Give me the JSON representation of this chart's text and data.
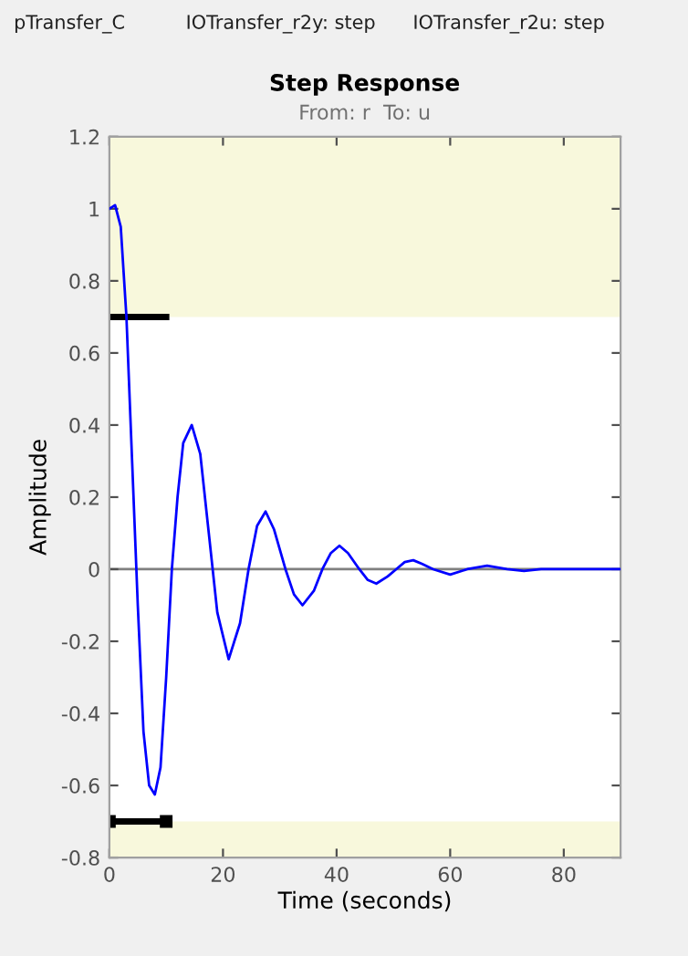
{
  "chart_data": {
    "type": "line",
    "title": "Step Response",
    "subtitle": "From: r  To: u",
    "xlabel": "Time (seconds)",
    "ylabel": "Amplitude",
    "annotations": [
      "pTransfer_C",
      "IOTransfer_r2y: step",
      "IOTransfer_r2u: step"
    ],
    "series": [
      {
        "color": "#0000ff",
        "x": [
          0,
          1,
          2,
          3,
          4,
          5,
          6,
          7,
          8,
          9,
          10,
          11,
          12,
          13,
          14.5,
          16,
          17.5,
          19,
          21,
          23,
          24.5,
          26,
          27.5,
          29,
          31,
          32.5,
          34,
          36,
          37.5,
          39,
          40.5,
          42,
          44,
          45.5,
          47,
          49,
          50.5,
          52,
          53.5,
          55,
          57,
          60,
          63,
          66.5,
          70,
          73,
          76,
          90
        ],
        "values": [
          1.0,
          1.01,
          0.95,
          0.7,
          0.3,
          -0.1,
          -0.45,
          -0.6,
          -0.625,
          -0.55,
          -0.3,
          0.0,
          0.2,
          0.35,
          0.4,
          0.32,
          0.1,
          -0.12,
          -0.25,
          -0.15,
          0.0,
          0.12,
          0.16,
          0.11,
          0.0,
          -0.07,
          -0.1,
          -0.06,
          0.0,
          0.045,
          0.065,
          0.045,
          0.0,
          -0.03,
          -0.04,
          -0.02,
          0.0,
          0.02,
          0.025,
          0.015,
          0.0,
          -0.015,
          0.0,
          0.01,
          0.0,
          -0.005,
          0.0,
          0.0
        ]
      },
      {
        "color": "#000000",
        "x": [
          0,
          10
        ],
        "values": [
          0.7,
          0.7
        ]
      },
      {
        "color": "#000000",
        "x": [
          0,
          10
        ],
        "values": [
          -0.7,
          -0.7
        ],
        "marker": "square"
      }
    ],
    "bands": [
      {
        "axis": "y",
        "from": 0.7,
        "to": 1.2,
        "color": "#f8f8dc"
      },
      {
        "axis": "y",
        "from": -0.8,
        "to": -0.7,
        "color": "#f8f8dc"
      }
    ],
    "ref_lines": [
      {
        "axis": "y",
        "value": 0,
        "color": "#808080"
      }
    ],
    "xlim": [
      0,
      90
    ],
    "xticks": [
      0,
      20,
      40,
      60,
      80
    ],
    "ylim": [
      -0.8,
      1.2
    ],
    "yticks": [
      -0.8,
      -0.6,
      -0.4,
      -0.2,
      0,
      0.2,
      0.4,
      0.6,
      0.8,
      1,
      1.2
    ],
    "grid": false,
    "legend": false,
    "marker": "none",
    "line_style": "solid"
  }
}
